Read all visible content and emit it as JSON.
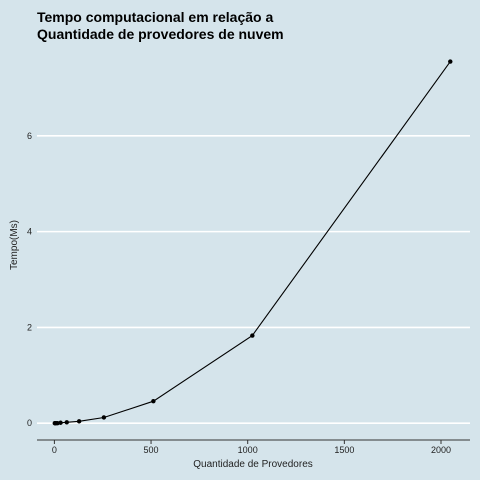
{
  "chart_data": {
    "type": "line",
    "title_lines": [
      "Tempo computacional em relação a",
      "Quantidade de provedores de nuvem"
    ],
    "xlabel": "Quantidade de Provedores",
    "ylabel": "Tempo(Ms)",
    "xlim": [
      -90,
      2150
    ],
    "ylim": [
      -0.35,
      7.75
    ],
    "xticks": [
      0,
      500,
      1000,
      1500,
      2000
    ],
    "yticks": [
      0,
      2,
      4,
      6
    ],
    "grid": "horizontal",
    "legend": "none",
    "colors": {
      "background": "#d5e4eb",
      "grid": "#ffffff",
      "line": "#000000",
      "axis": "#333333"
    },
    "x": [
      2,
      4,
      8,
      16,
      32,
      64,
      128,
      256,
      512,
      1024,
      2048
    ],
    "y": [
      0.0,
      0.0,
      0.0,
      0.0,
      0.01,
      0.02,
      0.04,
      0.12,
      0.46,
      1.83,
      7.55
    ]
  }
}
